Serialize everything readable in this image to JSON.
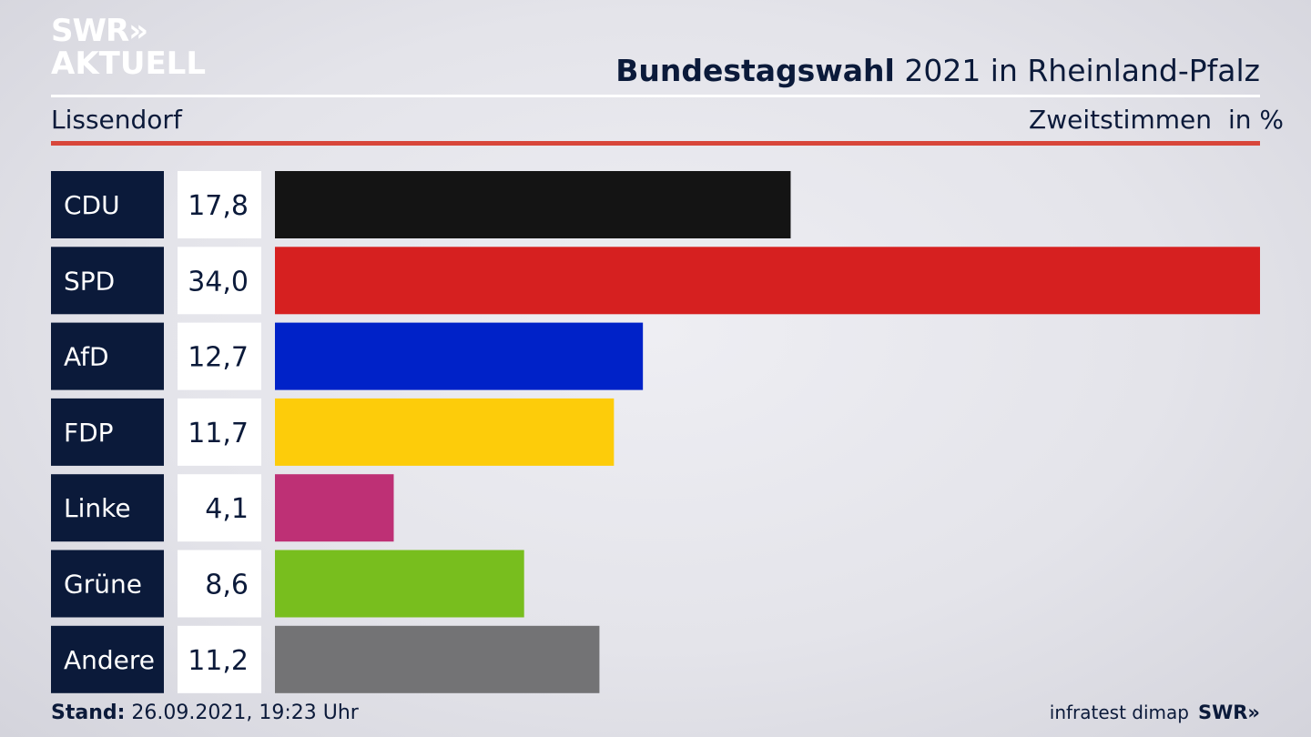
{
  "brand": {
    "line1": "SWR»",
    "line2": "AKTUELL"
  },
  "header": {
    "title_bold": "Bundestagswahl",
    "title_rest": " 2021 in Rheinland-Pfalz",
    "region": "Lissendorf",
    "metric": "Zweitstimmen",
    "unit": "in %"
  },
  "footer": {
    "stand_label": "Stand:",
    "stand_value": " 26.09.2021, 19:23 Uhr",
    "source": "infratest dimap",
    "broadcaster": "SWR»"
  },
  "chart_data": {
    "type": "bar",
    "orientation": "horizontal",
    "categories": [
      "CDU",
      "SPD",
      "AfD",
      "FDP",
      "Linke",
      "Grüne",
      "Andere"
    ],
    "values": [
      17.8,
      34.0,
      12.7,
      11.7,
      4.1,
      8.6,
      11.2
    ],
    "value_labels": [
      "17,8",
      "34,0",
      "12,7",
      "11,7",
      "4,1",
      "8,6",
      "11,2"
    ],
    "colors": [
      "#141414",
      "#d62020",
      "#0022c8",
      "#fdcc0a",
      "#be3075",
      "#78be1e",
      "#737375"
    ],
    "xlim": [
      0,
      34.0
    ],
    "grid": false,
    "legend": "none"
  }
}
